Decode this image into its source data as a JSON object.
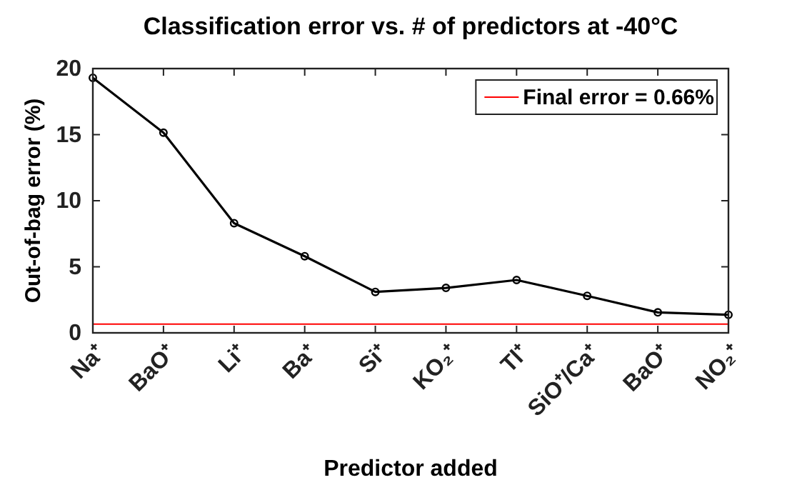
{
  "chart_data": {
    "type": "line",
    "title": "Classification error vs. # of predictors at -40°C",
    "xlabel": "Predictor added",
    "ylabel": "Out-of-bag error (%)",
    "categories": [
      "Na⁺",
      "BaO⁺",
      "Li⁺",
      "Ba⁺",
      "Si⁺",
      "KO₂⁺",
      "Tl⁺",
      "SiO⁺/Ca⁺",
      "BaO⁺",
      "NO₂⁺"
    ],
    "series": [
      {
        "color": "#000000",
        "values": [
          19.3,
          15.15,
          8.3,
          5.8,
          3.1,
          3.4,
          4.0,
          2.8,
          1.55,
          1.37
        ]
      }
    ],
    "ylim": [
      0,
      20
    ],
    "yticks": [
      0,
      5,
      10,
      15,
      20
    ],
    "marker": "circle",
    "line_style": "solid",
    "grid": false,
    "legend": "top right",
    "ref_lines": [
      {
        "axis": "y",
        "value": 0.66,
        "label": "Final error = 0.66%",
        "color": "#ff0000"
      }
    ]
  }
}
